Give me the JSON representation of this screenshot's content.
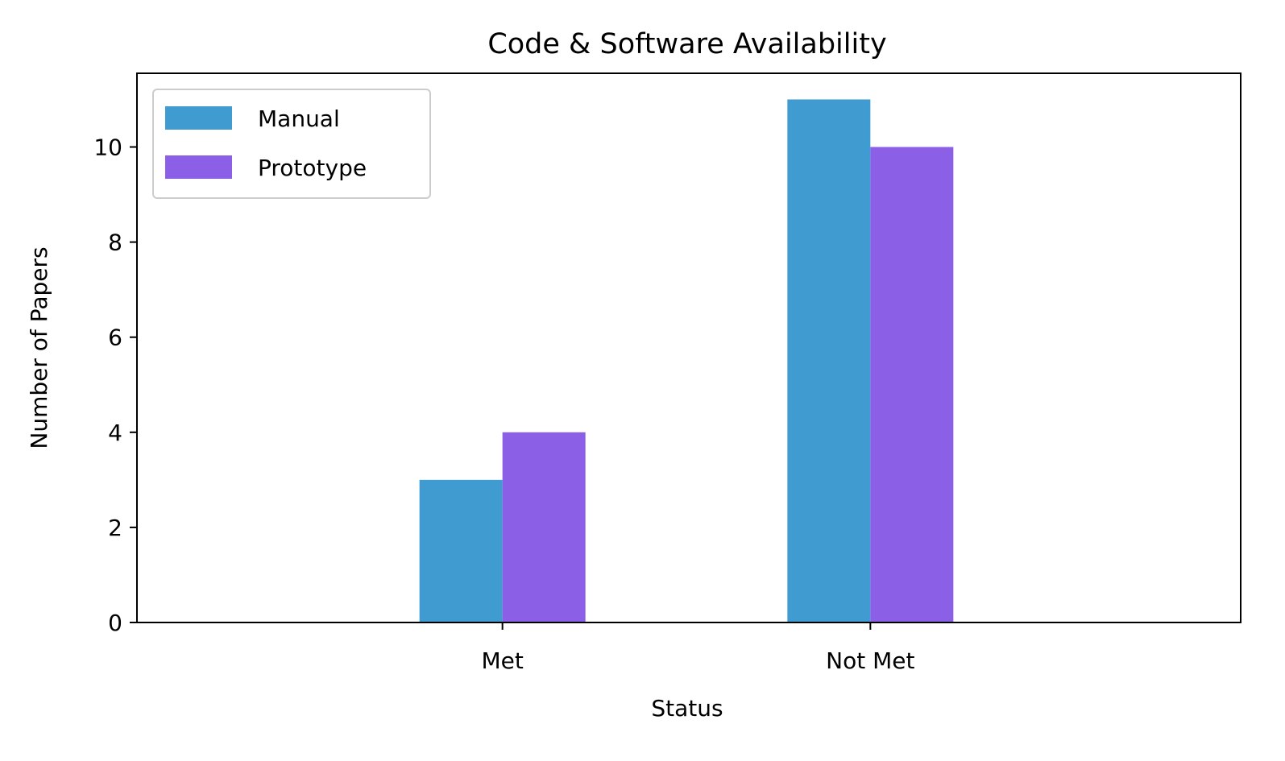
{
  "chart_data": {
    "type": "bar",
    "title": "Code & Software Availability",
    "xlabel": "Status",
    "ylabel": "Number of Papers",
    "categories": [
      "Met",
      "Not Met"
    ],
    "series": [
      {
        "name": "Manual",
        "values": [
          3,
          11
        ],
        "color": "#409cd0"
      },
      {
        "name": "Prototype",
        "values": [
          4,
          10
        ],
        "color": "#8b5fe6"
      }
    ],
    "ylim": [
      0,
      11.55
    ],
    "yticks": [
      "0",
      "2",
      "4",
      "6",
      "8",
      "10"
    ],
    "grid": false,
    "legend_position": "top-left"
  }
}
